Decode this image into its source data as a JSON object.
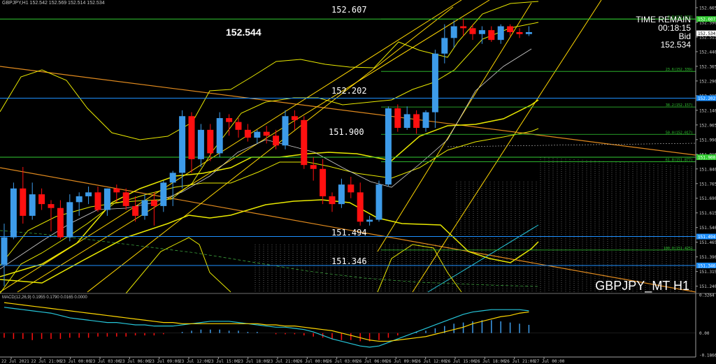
{
  "header": {
    "text": "GBPJPY,H1  152.542 152.569 152.514 152.534"
  },
  "overlay": {
    "big_price": "152.544",
    "time_remain_label": "TIME REMAIN",
    "time_remain_value": "00:18:15",
    "bid_label": "Bid",
    "bid_value": "152.534",
    "symbol_label": "GBPJPY_MT H1"
  },
  "price_axis": {
    "ticks": [
      "152.665",
      "152.590",
      "152.515",
      "152.440",
      "152.365",
      "152.290",
      "152.215",
      "152.140",
      "152.065",
      "151.990",
      "151.915",
      "151.840",
      "151.765",
      "151.690",
      "151.615",
      "151.540",
      "151.465",
      "151.390",
      "151.315",
      "151.240"
    ],
    "markers": [
      {
        "label": "152.607",
        "color": "#33cc33",
        "text": "#ffffff"
      },
      {
        "label": "152.534",
        "color": "#ffffff",
        "text": "#000000"
      },
      {
        "label": "152.202",
        "color": "#1e90ff",
        "text": "#ffffff"
      },
      {
        "label": "151.900",
        "color": "#33cc33",
        "text": "#ffffff"
      },
      {
        "label": "151.494",
        "color": "#1e90ff",
        "text": "#ffffff"
      },
      {
        "label": "151.346",
        "color": "#1e90ff",
        "text": "#ffffff"
      }
    ]
  },
  "time_axis": {
    "labels": [
      "22 Jul 2021",
      "22 Jul 21:00",
      "23 Jul 00:00",
      "23 Jul 03:00",
      "23 Jul 06:00",
      "23 Jul 09:00",
      "23 Jul 12:00",
      "23 Jul 15:00",
      "23 Jul 18:00",
      "23 Jul 21:00",
      "26 Jul 00:00",
      "26 Jul 03:00",
      "26 Jul 06:00",
      "26 Jul 09:00",
      "26 Jul 12:00",
      "26 Jul 15:00",
      "26 Jul 18:00",
      "26 Jul 21:00",
      "27 Jul 00:00"
    ]
  },
  "level_labels": [
    "152.607",
    "152.202",
    "151.900",
    "151.494",
    "151.346"
  ],
  "fib_labels": [
    "0.0(152.607)",
    "23.6(152.339)",
    "38.2(152.157)",
    "50.0(152.017)",
    "61.8(151.877)",
    "100.0(151.425)"
  ],
  "macd": {
    "label": "MACD(12,26,9) 0.1955 0.1790 0.0165 0.0000",
    "ticks": [
      "0.3264",
      "0.00",
      "-0.1866"
    ]
  },
  "colors": {
    "bull": "#3d9be9",
    "bear": "#ff1010",
    "grid_level": "#33cc33",
    "level_blue": "#1e90ff",
    "trend": "#ffd700",
    "bands": "#e8e800",
    "orange_trend": "#e08a1e",
    "cyan": "#26c6da",
    "macd_signal": "#ffd700",
    "macd_main": "#26c6da"
  },
  "chart_data": {
    "type": "candlestick",
    "title": "GBPJPY,H1",
    "y_range": [
      151.21,
      152.69
    ],
    "candles": [
      {
        "o": 151.35,
        "h": 151.56,
        "l": 151.24,
        "c": 151.49
      },
      {
        "o": 151.49,
        "h": 151.77,
        "l": 151.48,
        "c": 151.74
      },
      {
        "o": 151.74,
        "h": 151.85,
        "l": 151.56,
        "c": 151.6
      },
      {
        "o": 151.6,
        "h": 151.77,
        "l": 151.58,
        "c": 151.71
      },
      {
        "o": 151.71,
        "h": 151.74,
        "l": 151.63,
        "c": 151.66
      },
      {
        "o": 151.66,
        "h": 151.68,
        "l": 151.52,
        "c": 151.64
      },
      {
        "o": 151.64,
        "h": 151.68,
        "l": 151.48,
        "c": 151.49
      },
      {
        "o": 151.49,
        "h": 151.71,
        "l": 151.47,
        "c": 151.67
      },
      {
        "o": 151.67,
        "h": 151.72,
        "l": 151.6,
        "c": 151.7
      },
      {
        "o": 151.7,
        "h": 151.75,
        "l": 151.66,
        "c": 151.72
      },
      {
        "o": 151.72,
        "h": 151.75,
        "l": 151.62,
        "c": 151.63
      },
      {
        "o": 151.63,
        "h": 151.74,
        "l": 151.6,
        "c": 151.74
      },
      {
        "o": 151.74,
        "h": 151.76,
        "l": 151.67,
        "c": 151.72
      },
      {
        "o": 151.72,
        "h": 151.74,
        "l": 151.63,
        "c": 151.65
      },
      {
        "o": 151.65,
        "h": 151.7,
        "l": 151.57,
        "c": 151.6
      },
      {
        "o": 151.6,
        "h": 151.71,
        "l": 151.58,
        "c": 151.68
      },
      {
        "o": 151.68,
        "h": 151.72,
        "l": 151.55,
        "c": 151.65
      },
      {
        "o": 151.65,
        "h": 151.78,
        "l": 151.62,
        "c": 151.77
      },
      {
        "o": 151.77,
        "h": 151.83,
        "l": 151.65,
        "c": 151.82
      },
      {
        "o": 151.82,
        "h": 152.14,
        "l": 151.74,
        "c": 152.11
      },
      {
        "o": 152.11,
        "h": 152.13,
        "l": 151.82,
        "c": 151.89
      },
      {
        "o": 151.89,
        "h": 152.07,
        "l": 151.85,
        "c": 152.04
      },
      {
        "o": 152.04,
        "h": 152.07,
        "l": 151.88,
        "c": 151.92
      },
      {
        "o": 151.92,
        "h": 152.13,
        "l": 151.9,
        "c": 152.1
      },
      {
        "o": 152.1,
        "h": 152.12,
        "l": 152.01,
        "c": 152.08
      },
      {
        "o": 152.08,
        "h": 152.1,
        "l": 152.0,
        "c": 152.04
      },
      {
        "o": 152.04,
        "h": 152.07,
        "l": 151.98,
        "c": 152.0
      },
      {
        "o": 152.0,
        "h": 152.04,
        "l": 151.97,
        "c": 152.03
      },
      {
        "o": 152.03,
        "h": 152.06,
        "l": 151.97,
        "c": 152.01
      },
      {
        "o": 152.01,
        "h": 152.04,
        "l": 151.94,
        "c": 151.96
      },
      {
        "o": 151.96,
        "h": 152.14,
        "l": 151.94,
        "c": 152.11
      },
      {
        "o": 152.11,
        "h": 152.14,
        "l": 152.04,
        "c": 152.09
      },
      {
        "o": 152.09,
        "h": 152.11,
        "l": 151.84,
        "c": 151.86
      },
      {
        "o": 151.86,
        "h": 151.9,
        "l": 151.78,
        "c": 151.84
      },
      {
        "o": 151.84,
        "h": 151.89,
        "l": 151.66,
        "c": 151.7
      },
      {
        "o": 151.7,
        "h": 151.72,
        "l": 151.62,
        "c": 151.66
      },
      {
        "o": 151.66,
        "h": 151.79,
        "l": 151.64,
        "c": 151.76
      },
      {
        "o": 151.76,
        "h": 151.8,
        "l": 151.69,
        "c": 151.72
      },
      {
        "o": 151.72,
        "h": 151.77,
        "l": 151.55,
        "c": 151.57
      },
      {
        "o": 151.57,
        "h": 151.6,
        "l": 151.55,
        "c": 151.58
      },
      {
        "o": 151.58,
        "h": 151.78,
        "l": 151.57,
        "c": 151.76
      },
      {
        "o": 151.76,
        "h": 152.16,
        "l": 151.75,
        "c": 152.15
      },
      {
        "o": 152.15,
        "h": 152.17,
        "l": 152.03,
        "c": 152.05
      },
      {
        "o": 152.05,
        "h": 152.16,
        "l": 152.04,
        "c": 152.12
      },
      {
        "o": 152.12,
        "h": 152.14,
        "l": 152.02,
        "c": 152.05
      },
      {
        "o": 152.05,
        "h": 152.14,
        "l": 152.03,
        "c": 152.13
      },
      {
        "o": 152.13,
        "h": 152.45,
        "l": 152.05,
        "c": 152.43
      },
      {
        "o": 152.43,
        "h": 152.58,
        "l": 152.38,
        "c": 152.51
      },
      {
        "o": 152.51,
        "h": 152.6,
        "l": 152.46,
        "c": 152.57
      },
      {
        "o": 152.57,
        "h": 152.61,
        "l": 152.52,
        "c": 152.56
      },
      {
        "o": 152.56,
        "h": 152.58,
        "l": 152.5,
        "c": 152.53
      },
      {
        "o": 152.53,
        "h": 152.57,
        "l": 152.48,
        "c": 152.55
      },
      {
        "o": 152.55,
        "h": 152.57,
        "l": 152.49,
        "c": 152.5
      },
      {
        "o": 152.5,
        "h": 152.58,
        "l": 152.48,
        "c": 152.57
      },
      {
        "o": 152.57,
        "h": 152.58,
        "l": 152.52,
        "c": 152.54
      },
      {
        "o": 152.54,
        "h": 152.56,
        "l": 152.51,
        "c": 152.53
      },
      {
        "o": 152.53,
        "h": 152.57,
        "l": 152.52,
        "c": 152.54
      }
    ],
    "macd_histogram": [
      -0.04,
      -0.05,
      -0.05,
      -0.06,
      -0.05,
      -0.05,
      -0.05,
      -0.04,
      -0.04,
      -0.04,
      -0.03,
      -0.03,
      -0.03,
      -0.03,
      -0.02,
      -0.02,
      -0.02,
      -0.01,
      0.0,
      0.01,
      0.02,
      0.03,
      0.03,
      0.03,
      0.02,
      0.02,
      0.01,
      0.01,
      0.0,
      -0.01,
      -0.01,
      -0.01,
      -0.02,
      -0.03,
      -0.04,
      -0.05,
      -0.06,
      -0.06,
      -0.07,
      -0.07,
      -0.06,
      -0.04,
      -0.02,
      0.0,
      0.01,
      0.02,
      0.04,
      0.06,
      0.08,
      0.09,
      0.1,
      0.11,
      0.11,
      0.1,
      0.09,
      0.08,
      0.07
    ],
    "macd_main": [
      0.22,
      0.21,
      0.2,
      0.19,
      0.18,
      0.17,
      0.15,
      0.13,
      0.12,
      0.11,
      0.1,
      0.09,
      0.09,
      0.08,
      0.07,
      0.07,
      0.06,
      0.06,
      0.06,
      0.07,
      0.08,
      0.09,
      0.1,
      0.1,
      0.1,
      0.09,
      0.08,
      0.07,
      0.06,
      0.05,
      0.05,
      0.04,
      0.03,
      0.01,
      -0.02,
      -0.05,
      -0.07,
      -0.09,
      -0.11,
      -0.12,
      -0.11,
      -0.08,
      -0.05,
      -0.02,
      0.01,
      0.04,
      0.07,
      0.1,
      0.13,
      0.16,
      0.18,
      0.19,
      0.2,
      0.2,
      0.2,
      0.2,
      0.19
    ],
    "macd_signal": [
      0.26,
      0.25,
      0.24,
      0.23,
      0.22,
      0.21,
      0.2,
      0.19,
      0.18,
      0.17,
      0.16,
      0.15,
      0.14,
      0.13,
      0.12,
      0.11,
      0.1,
      0.09,
      0.09,
      0.08,
      0.08,
      0.08,
      0.08,
      0.08,
      0.08,
      0.08,
      0.08,
      0.08,
      0.07,
      0.07,
      0.06,
      0.06,
      0.05,
      0.04,
      0.03,
      0.02,
      0.0,
      -0.02,
      -0.04,
      -0.06,
      -0.07,
      -0.07,
      -0.06,
      -0.05,
      -0.04,
      -0.03,
      -0.01,
      0.01,
      0.03,
      0.05,
      0.08,
      0.1,
      0.12,
      0.14,
      0.15,
      0.17,
      0.18
    ]
  }
}
